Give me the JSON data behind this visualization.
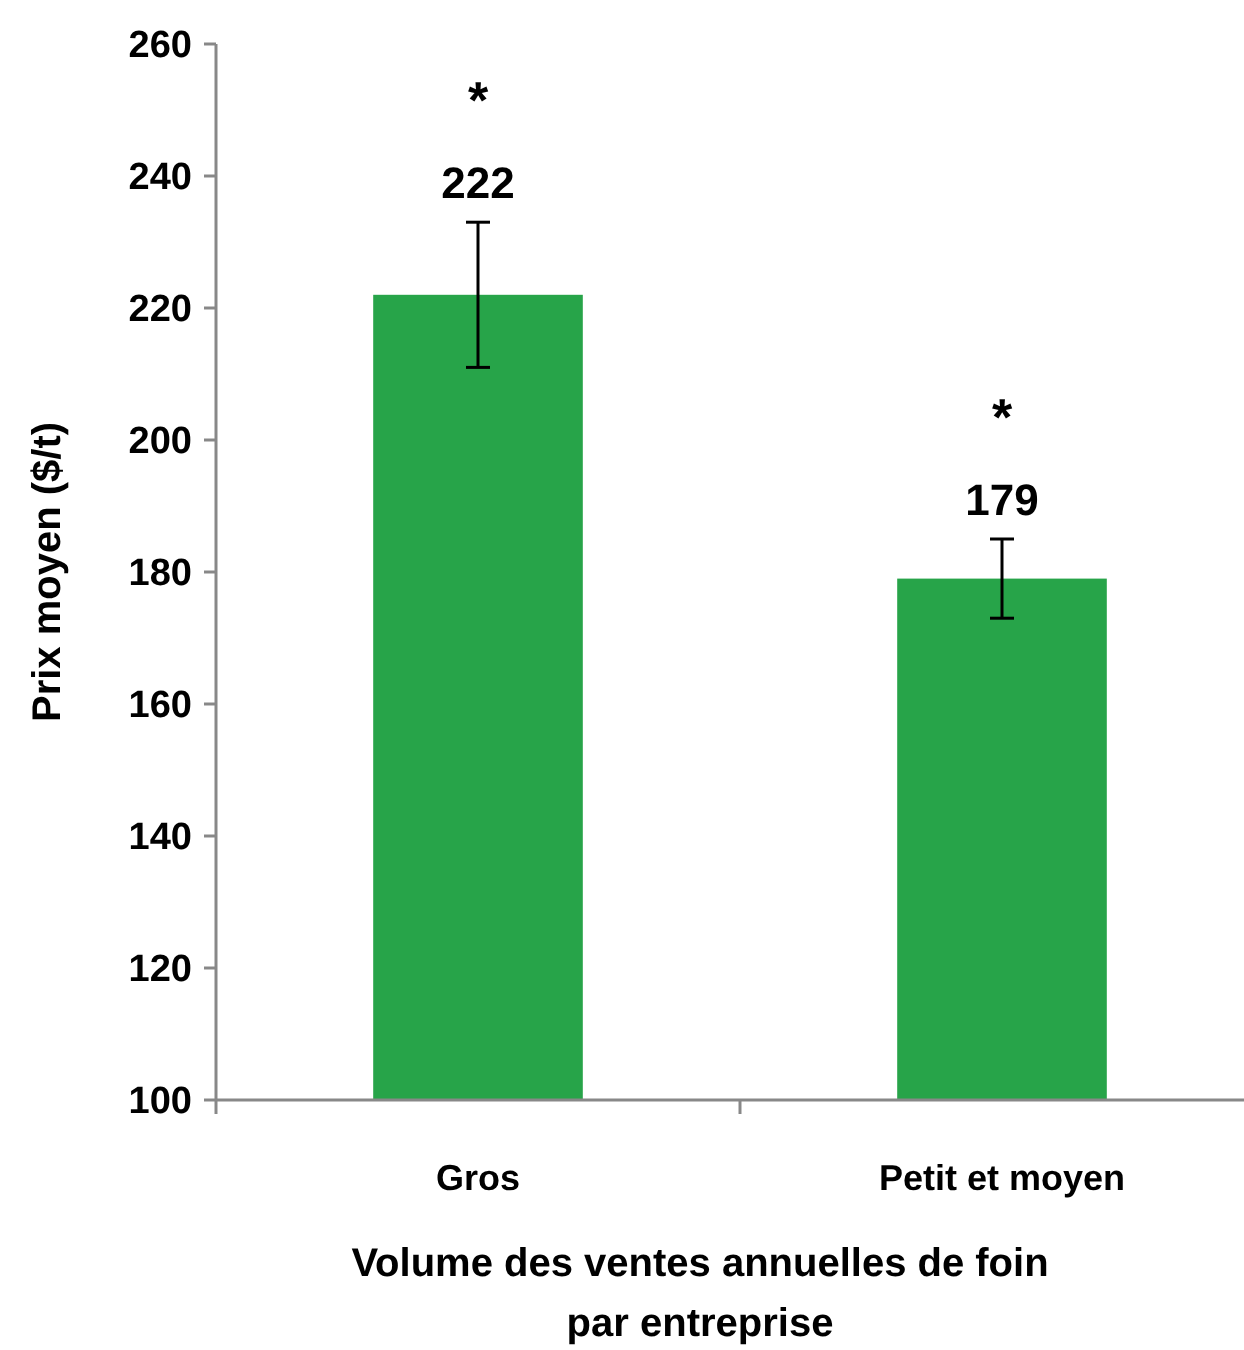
{
  "chart_data": {
    "type": "bar",
    "xlabel": "Volume des ventes annuelles de foin\npar entreprise",
    "ylabel": "Prix moyen ($/t)",
    "categories": [
      "Gros",
      "Petit et moyen"
    ],
    "values": [
      222,
      179
    ],
    "errors": [
      11,
      6
    ],
    "color": "#27a449",
    "data_labels": true,
    "ylim": [
      100,
      260
    ],
    "yticks": [
      100,
      120,
      140,
      160,
      180,
      200,
      220,
      240,
      260
    ],
    "grid": false,
    "annotations": [
      "*",
      "*"
    ]
  }
}
